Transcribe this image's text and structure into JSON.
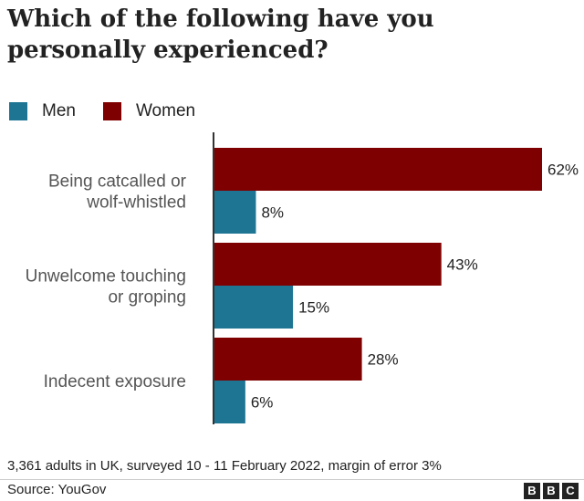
{
  "title": "Which of the following have you personally experienced?",
  "legend": [
    {
      "label": "Men",
      "color": "#1d7493"
    },
    {
      "label": "Women",
      "color": "#7f0000"
    }
  ],
  "chart_data": {
    "type": "bar",
    "orientation": "horizontal",
    "categories": [
      [
        "Being catcalled or",
        "wolf-whistled"
      ],
      [
        "Unwelcome touching",
        "or groping"
      ],
      [
        "Indecent exposure"
      ]
    ],
    "series": [
      {
        "name": "Women",
        "values": [
          62,
          43,
          28
        ],
        "color": "#7f0000"
      },
      {
        "name": "Men",
        "values": [
          8,
          15,
          6
        ],
        "color": "#1d7493"
      }
    ],
    "value_suffix": "%",
    "xlim": [
      0,
      64
    ],
    "grid": false,
    "legend_position": "top-left"
  },
  "footnote": "3,361 adults in UK, surveyed 10 - 11 February 2022, margin of error 3%",
  "source": "Source: YouGov",
  "logo_letters": [
    "B",
    "B",
    "C"
  ]
}
